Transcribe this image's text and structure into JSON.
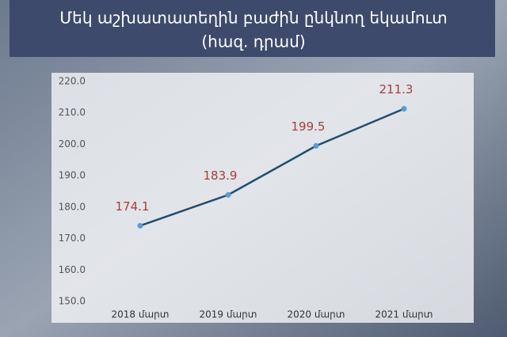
{
  "chart_data": {
    "type": "line",
    "title": "Մեկ աշխատատեղին բաժին ընկնող եկամուտ",
    "subtitle": "(հազ. դրամ)",
    "categories": [
      "2018 մարտ",
      "2019 մարտ",
      "2020 մարտ",
      "2021 մարտ"
    ],
    "values": [
      174.1,
      183.9,
      199.5,
      211.3
    ],
    "color": "#1f4e6b",
    "marker_color": "#5b9bd5",
    "label_color": "#a3403c",
    "ylim": [
      146.5,
      222
    ],
    "yticks": [
      {
        "value": 150,
        "label": "150.0"
      },
      {
        "value": 160,
        "label": "160.0"
      },
      {
        "value": 170,
        "label": "170.0"
      },
      {
        "value": 180,
        "label": "180.0"
      },
      {
        "value": 190,
        "label": "190.0"
      },
      {
        "value": 200,
        "label": "200.0"
      },
      {
        "value": 210,
        "label": "210.0"
      },
      {
        "value": 220,
        "label": "220.0"
      }
    ],
    "grid": false
  }
}
